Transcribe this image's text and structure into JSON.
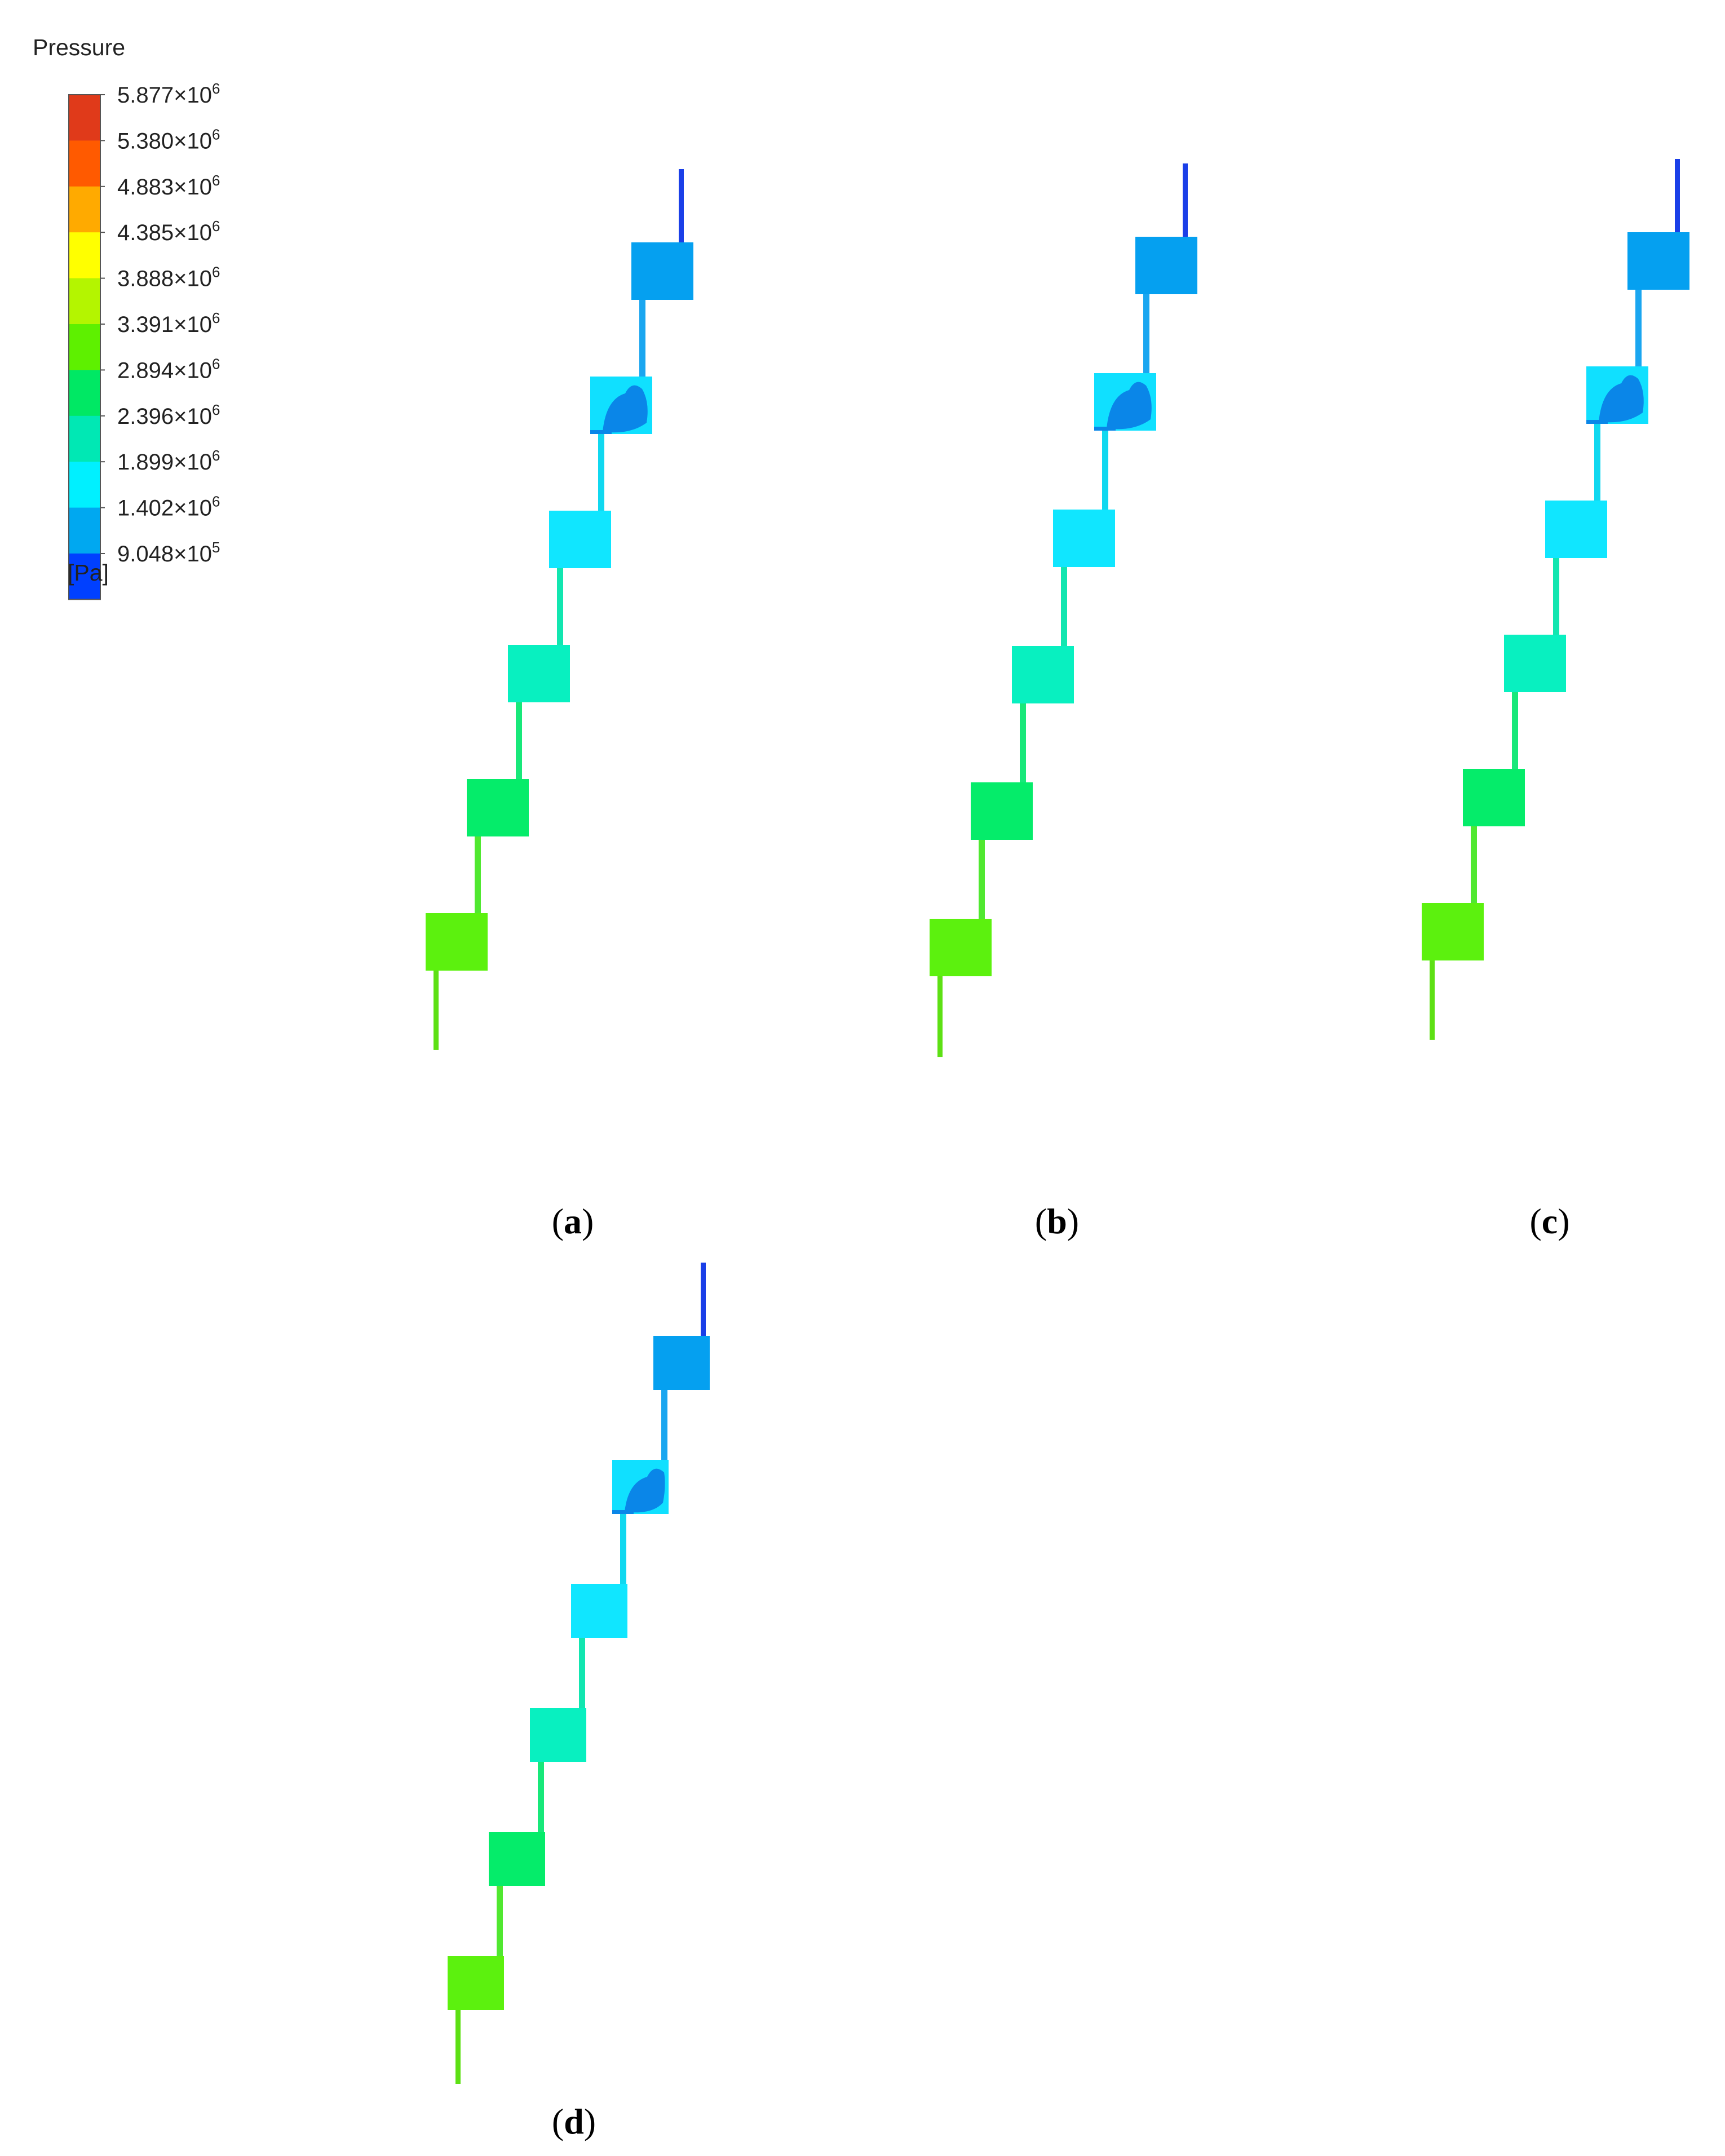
{
  "legend": {
    "title": "Pressure",
    "unit": "[Pa]",
    "ticks": [
      {
        "mantissa": "5.877",
        "exp": "6"
      },
      {
        "mantissa": "5.380",
        "exp": "6"
      },
      {
        "mantissa": "4.883",
        "exp": "6"
      },
      {
        "mantissa": "4.385",
        "exp": "6"
      },
      {
        "mantissa": "3.888",
        "exp": "6"
      },
      {
        "mantissa": "3.391",
        "exp": "6"
      },
      {
        "mantissa": "2.894",
        "exp": "6"
      },
      {
        "mantissa": "2.396",
        "exp": "6"
      },
      {
        "mantissa": "1.899",
        "exp": "6"
      },
      {
        "mantissa": "1.402",
        "exp": "6"
      },
      {
        "mantissa": "9.048",
        "exp": "5"
      }
    ],
    "colors": [
      "#e03a1a",
      "#ff5a00",
      "#ffaa00",
      "#ffff00",
      "#b4f500",
      "#5ef000",
      "#00e864",
      "#00e8b4",
      "#00f0ff",
      "#00a8f0",
      "#0040ff"
    ]
  },
  "colors": {
    "outlet_line": "#1a3fe8",
    "chamber_1": "#05a0f0",
    "chamber_2": "#10e0ff",
    "chamber_2_core": "#0a86e8",
    "chamber_3": "#10e6ff",
    "chamber_4": "#08f0c0",
    "chamber_5": "#05ec6a",
    "chamber_6": "#5cf10e",
    "inlet_line": "#5de014",
    "pipe_upper": "#1aa6f0",
    "pipe_mid": "#10d8f0",
    "pipe_low": "#12e6b0",
    "pipe_green": "#18e87a",
    "pipe_inlet": "#50e830"
  },
  "panels": [
    {
      "letter": "a"
    },
    {
      "letter": "b"
    },
    {
      "letter": "c"
    },
    {
      "letter": "d"
    }
  ]
}
